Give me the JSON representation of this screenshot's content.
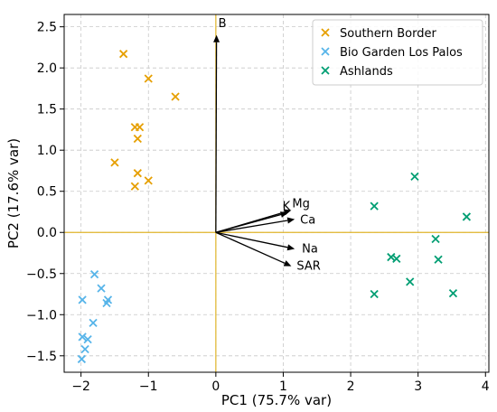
{
  "chart_data": {
    "type": "scatter",
    "xlabel": "PC1 (75.7% var)",
    "ylabel": "PC2 (17.6% var)",
    "xlim": [
      -2.25,
      4.05
    ],
    "ylim": [
      -1.7,
      2.65
    ],
    "xticks": [
      -2,
      -1,
      0,
      1,
      2,
      3,
      4
    ],
    "yticks": [
      -1.5,
      -1.0,
      -0.5,
      0.0,
      0.5,
      1.0,
      1.5,
      2.0,
      2.5
    ],
    "xtick_labels": [
      "−2",
      "−1",
      "0",
      "1",
      "2",
      "3",
      "4"
    ],
    "ytick_labels": [
      "−1.5",
      "−1.0",
      "−0.5",
      "0.0",
      "0.5",
      "1.0",
      "1.5",
      "2.0",
      "2.5"
    ],
    "grid": true,
    "legend_position": "top-right",
    "marker": "x",
    "reference_lines": {
      "x": 0,
      "y": 0,
      "color": "#e0b52a"
    },
    "series": [
      {
        "name": "Southern Border",
        "color": "#e69f00",
        "points": [
          [
            -1.37,
            2.17
          ],
          [
            -1.0,
            1.87
          ],
          [
            -0.6,
            1.65
          ],
          [
            -1.2,
            1.28
          ],
          [
            -1.13,
            1.28
          ],
          [
            -1.16,
            1.14
          ],
          [
            -1.5,
            0.85
          ],
          [
            -1.16,
            0.72
          ],
          [
            -1.0,
            0.63
          ],
          [
            -1.2,
            0.56
          ]
        ]
      },
      {
        "name": "Bio Garden Los Palos",
        "color": "#56b4e9",
        "points": [
          [
            -1.8,
            -0.51
          ],
          [
            -1.7,
            -0.68
          ],
          [
            -1.6,
            -0.82
          ],
          [
            -1.62,
            -0.86
          ],
          [
            -1.98,
            -0.82
          ],
          [
            -1.82,
            -1.1
          ],
          [
            -1.98,
            -1.27
          ],
          [
            -1.9,
            -1.3
          ],
          [
            -1.94,
            -1.42
          ],
          [
            -1.99,
            -1.54
          ]
        ]
      },
      {
        "name": "Ashlands",
        "color": "#009e73",
        "points": [
          [
            2.95,
            0.68
          ],
          [
            2.35,
            0.32
          ],
          [
            3.72,
            0.19
          ],
          [
            3.26,
            -0.08
          ],
          [
            2.6,
            -0.3
          ],
          [
            2.68,
            -0.32
          ],
          [
            3.3,
            -0.33
          ],
          [
            2.88,
            -0.6
          ],
          [
            2.35,
            -0.75
          ],
          [
            3.52,
            -0.74
          ]
        ]
      }
    ],
    "loadings": [
      {
        "label": "B",
        "x": 0.01,
        "y": 2.4
      },
      {
        "label": "Mg",
        "x": 1.12,
        "y": 0.27
      },
      {
        "label": "K",
        "x": 1.07,
        "y": 0.24
      },
      {
        "label": "Ca",
        "x": 1.17,
        "y": 0.16
      },
      {
        "label": "Na",
        "x": 1.17,
        "y": -0.2
      },
      {
        "label": "SAR",
        "x": 1.12,
        "y": -0.41
      }
    ]
  }
}
